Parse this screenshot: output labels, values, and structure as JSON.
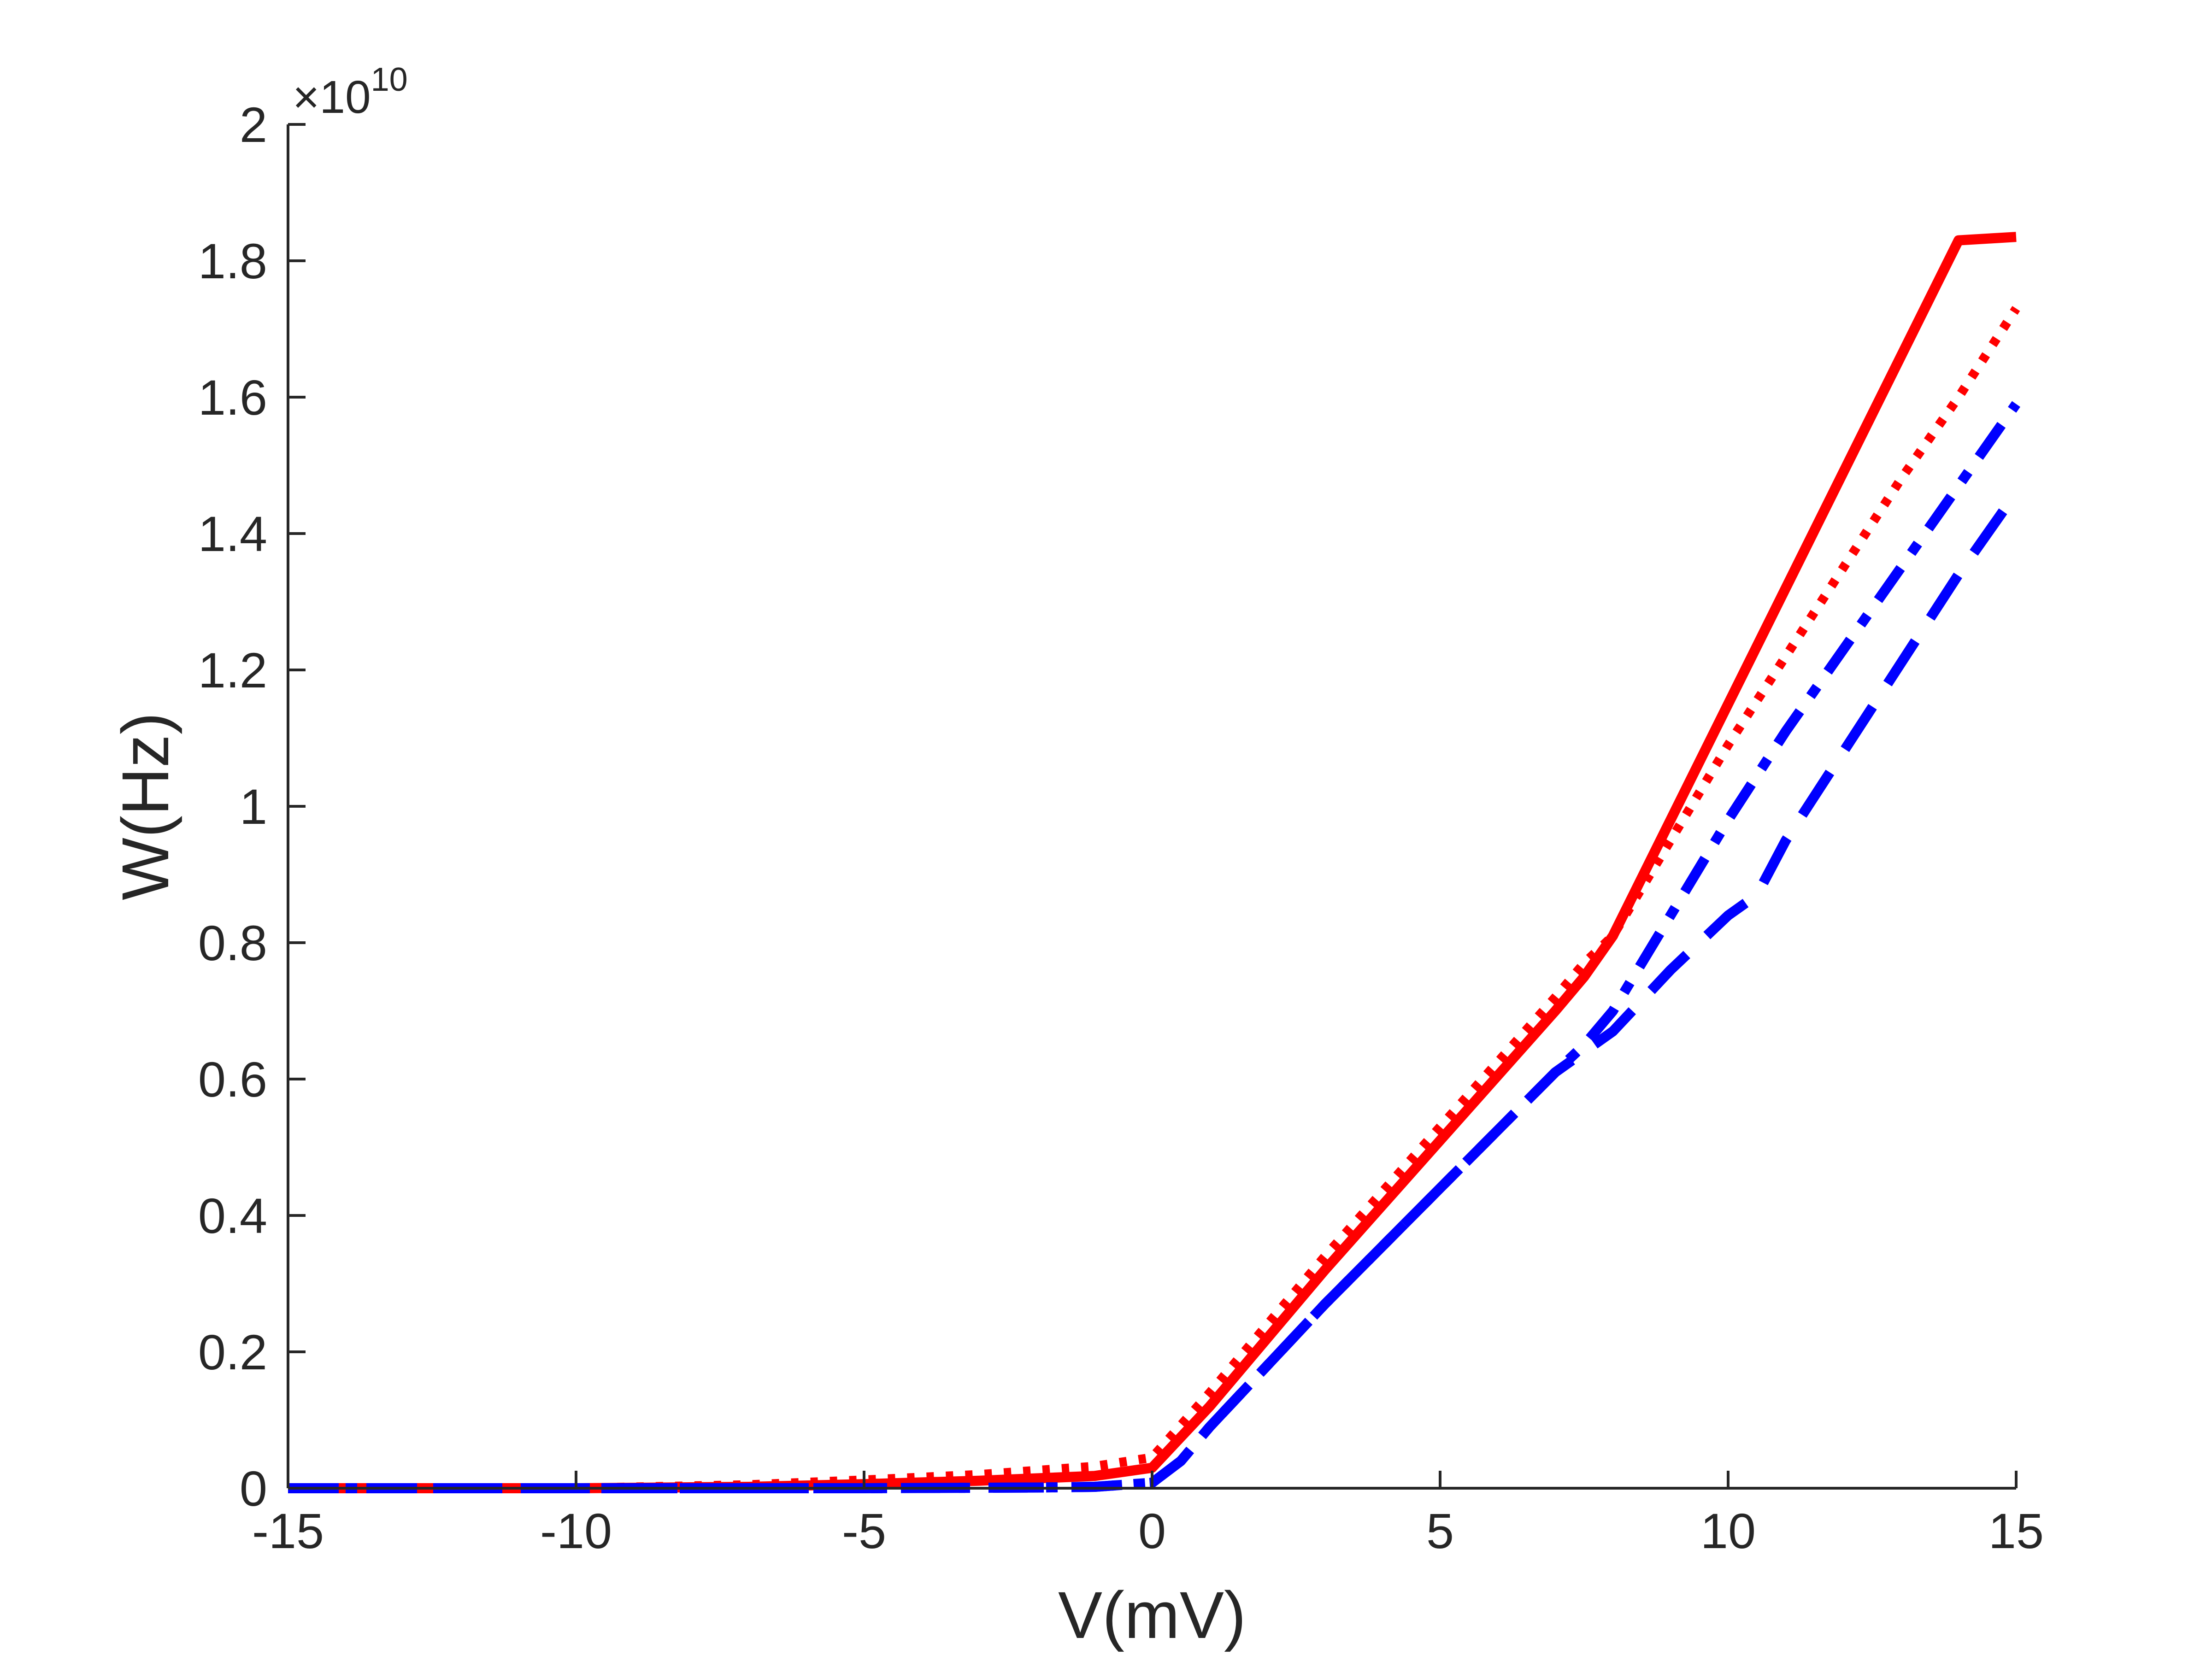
{
  "chart_data": {
    "type": "line",
    "title": "",
    "xlabel": "V(mV)",
    "ylabel": "W(Hz)",
    "xlim": [
      -15,
      15
    ],
    "ylim": [
      0,
      2
    ],
    "y_multiplier_base": "10",
    "y_multiplier_exp": "10",
    "xticks": [
      -15,
      -10,
      -5,
      0,
      5,
      10,
      15
    ],
    "xtick_labels": [
      "-15",
      "-10",
      "-5",
      "0",
      "5",
      "10",
      "15"
    ],
    "yticks": [
      0,
      0.2,
      0.4,
      0.6,
      0.8,
      1,
      1.2,
      1.4,
      1.6,
      1.8,
      2
    ],
    "ytick_labels": [
      "0",
      "0.2",
      "0.4",
      "0.6",
      "0.8",
      "1",
      "1.2",
      "1.4",
      "1.6",
      "1.8",
      "2"
    ],
    "grid": false,
    "legend": "none",
    "series": [
      {
        "color": "#ff0000",
        "line_style": "solid",
        "x": [
          -15,
          -10,
          -7,
          -5,
          -3,
          -1,
          0,
          1,
          3,
          5,
          7,
          7.5,
          8,
          9,
          10,
          11,
          12,
          13,
          14,
          15
        ],
        "y": [
          0,
          0,
          0.002,
          0.006,
          0.011,
          0.018,
          0.03,
          0.12,
          0.32,
          0.51,
          0.7,
          0.75,
          0.81,
          0.98,
          1.15,
          1.32,
          1.49,
          1.66,
          1.83,
          1.835
        ]
      },
      {
        "color": "#ff0000",
        "line_style": "dotted",
        "x": [
          -15,
          -10,
          -7,
          -5,
          -3,
          -1,
          0,
          1,
          3,
          5,
          7,
          7.5,
          8,
          9,
          10,
          11,
          12,
          13,
          14,
          15
        ],
        "y": [
          0,
          0,
          0.005,
          0.012,
          0.02,
          0.032,
          0.045,
          0.14,
          0.34,
          0.53,
          0.72,
          0.77,
          0.81,
          0.95,
          1.09,
          1.22,
          1.35,
          1.48,
          1.6,
          1.73
        ]
      },
      {
        "color": "#0000ff",
        "line_style": "dashdot",
        "x": [
          -15,
          -10,
          -5,
          -2,
          -1,
          0,
          0.5,
          1,
          3,
          5,
          7,
          7.5,
          8,
          9,
          10,
          11,
          12,
          13,
          14,
          15
        ],
        "y": [
          0,
          0,
          0,
          0.001,
          0.002,
          0.008,
          0.04,
          0.09,
          0.27,
          0.44,
          0.61,
          0.65,
          0.7,
          0.84,
          0.98,
          1.11,
          1.23,
          1.35,
          1.47,
          1.59
        ]
      },
      {
        "color": "#0000ff",
        "line_style": "dashed",
        "x": [
          -15,
          -10,
          -5,
          -2,
          -1,
          0,
          0.5,
          1,
          3,
          5,
          7,
          7.5,
          8,
          9,
          10,
          10.5,
          11,
          12,
          13,
          14,
          15
        ],
        "y": [
          0,
          0,
          0,
          0.001,
          0.002,
          0.008,
          0.04,
          0.09,
          0.27,
          0.44,
          0.61,
          0.64,
          0.67,
          0.76,
          0.84,
          0.87,
          0.95,
          1.08,
          1.21,
          1.34,
          1.46
        ]
      }
    ]
  }
}
